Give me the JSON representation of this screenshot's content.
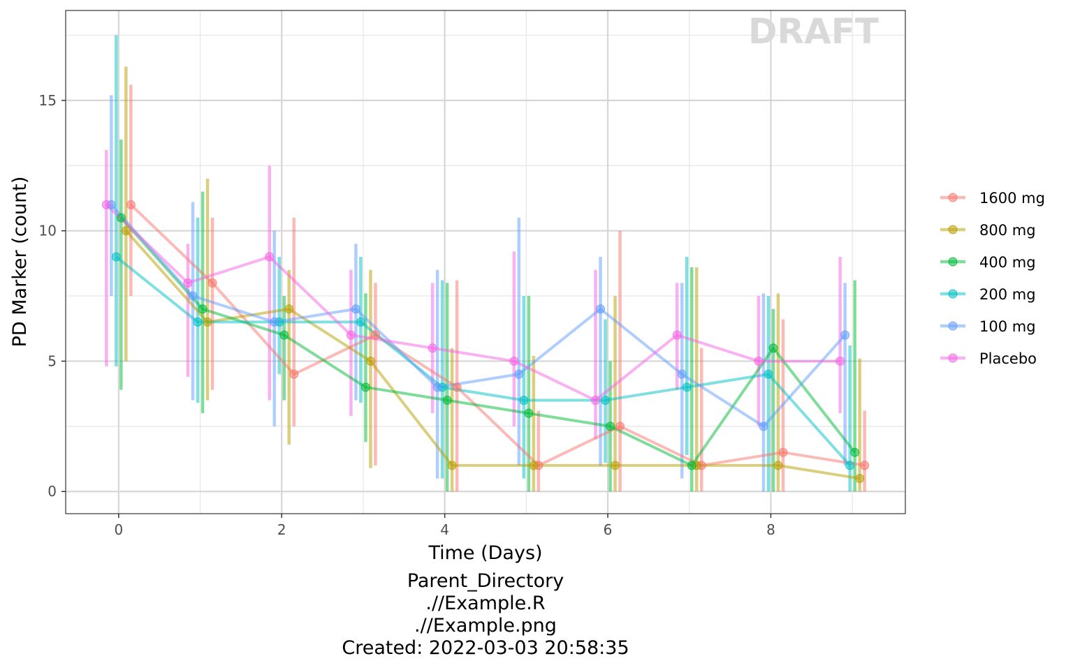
{
  "chart_data": {
    "type": "line",
    "title": "",
    "xlabel": "Time (Days)",
    "ylabel": "PD Marker (count)",
    "xlim": [
      -0.65,
      9.65
    ],
    "ylim": [
      -0.85,
      18.45
    ],
    "x_ticks": [
      0,
      2,
      4,
      6,
      8
    ],
    "y_ticks": [
      0,
      5,
      10,
      15
    ],
    "x_tick_labels": [
      "0",
      "2",
      "4",
      "6",
      "8"
    ],
    "y_tick_labels": [
      "0",
      "5",
      "10",
      "15"
    ],
    "grid": true,
    "legend_position": "right",
    "error_bars": true,
    "watermark": "DRAFT",
    "series": [
      {
        "name": "1600 mg",
        "color": "#F8766D",
        "offset": 0.15,
        "x": [
          0,
          1,
          2,
          3,
          4,
          5,
          6,
          7,
          8,
          9
        ],
        "y": [
          11,
          8,
          4.5,
          6,
          4,
          1,
          2.5,
          1,
          1.5,
          1
        ],
        "lower": [
          7.5,
          3.9,
          2.5,
          1,
          0,
          0,
          0,
          0,
          0,
          0
        ],
        "upper": [
          15.6,
          10.5,
          10.5,
          8,
          8.1,
          3.1,
          10,
          5.5,
          6.6,
          3.1
        ]
      },
      {
        "name": "800 mg",
        "color": "#B79F00",
        "offset": 0.09,
        "x": [
          0,
          1,
          2,
          3,
          4,
          5,
          6,
          7,
          8,
          9
        ],
        "y": [
          10,
          6.5,
          7,
          5,
          1,
          1,
          1,
          1,
          1,
          0.5
        ],
        "lower": [
          5,
          3.5,
          1.8,
          0.9,
          0,
          0,
          0,
          0,
          0,
          0
        ],
        "upper": [
          16.3,
          12,
          8.5,
          8.5,
          5.5,
          5.2,
          7.5,
          8.6,
          7.6,
          5.1
        ]
      },
      {
        "name": "400 mg",
        "color": "#00BA38",
        "offset": 0.03,
        "x": [
          0,
          1,
          2,
          3,
          4,
          5,
          6,
          7,
          8,
          9
        ],
        "y": [
          10.5,
          7,
          6,
          4,
          3.5,
          3,
          2.5,
          1,
          5.5,
          1.5
        ],
        "lower": [
          3.9,
          3,
          3.5,
          1.9,
          0,
          0,
          0,
          0,
          0,
          0
        ],
        "upper": [
          13.5,
          11.5,
          7.5,
          7.6,
          8,
          7.5,
          5,
          8.6,
          7,
          8.1
        ]
      },
      {
        "name": "200 mg",
        "color": "#00BFC4",
        "offset": -0.03,
        "x": [
          0,
          1,
          2,
          3,
          4,
          5,
          6,
          7,
          8,
          9
        ],
        "y": [
          9,
          6.5,
          6.5,
          6.5,
          4,
          3.5,
          3.5,
          4,
          4.5,
          1
        ],
        "lower": [
          4.8,
          3.4,
          4.5,
          3.4,
          0.5,
          0.5,
          1.1,
          1.4,
          0,
          0
        ],
        "upper": [
          17.5,
          10.5,
          9,
          9,
          8.1,
          7.5,
          6.6,
          9,
          7.5,
          5.6
        ]
      },
      {
        "name": "100 mg",
        "color": "#619CFF",
        "offset": -0.09,
        "x": [
          0,
          1,
          2,
          3,
          4,
          5,
          6,
          7,
          8,
          9
        ],
        "y": [
          11,
          7.5,
          6.5,
          7,
          4,
          4.5,
          7,
          4.5,
          2.5,
          6
        ],
        "lower": [
          7.5,
          3.5,
          2.5,
          3.5,
          0.5,
          1,
          1,
          0.5,
          0,
          1
        ],
        "upper": [
          15.2,
          11.1,
          10,
          9.5,
          8.5,
          10.5,
          9,
          8,
          7.6,
          8
        ]
      },
      {
        "name": "Placebo",
        "color": "#F564E3",
        "offset": -0.15,
        "x": [
          0,
          1,
          2,
          3,
          4,
          5,
          6,
          7,
          8,
          9
        ],
        "y": [
          11,
          8,
          9,
          6,
          5.5,
          5,
          3.5,
          6,
          5,
          5
        ],
        "lower": [
          4.8,
          4.4,
          3.5,
          2.9,
          3,
          2.5,
          2,
          3.9,
          2.5,
          3
        ],
        "upper": [
          13.1,
          9.5,
          12.5,
          8.5,
          8,
          9.2,
          8.5,
          8,
          7.5,
          9
        ]
      }
    ]
  },
  "caption": {
    "line1": "Parent_Directory",
    "line2": ".//Example.R",
    "line3": ".//Example.png",
    "line4": "Created: 2022-03-03 20:58:35"
  }
}
